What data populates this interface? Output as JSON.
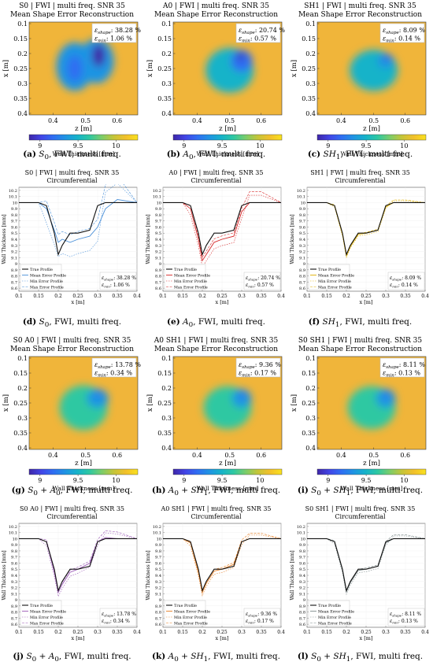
{
  "heatmaps": [
    {
      "id": "a",
      "title1": "S0 | FWI | multi freq. SNR 35",
      "title2": "Mean Shape Error Reconstruction",
      "eshape": "38.28 %",
      "emin": "1.06 %",
      "caption_tag": "(a)",
      "caption_mode": "S",
      "caption_sub": "0",
      "caption_rest": ", FWI, multi freq.",
      "shape": "s0"
    },
    {
      "id": "b",
      "title1": "A0 | FWI | multi freq. SNR 35",
      "title2": "Mean Shape Error Reconstruction",
      "eshape": "20.74 %",
      "emin": "0.57 %",
      "caption_tag": "(b)",
      "caption_mode": "A",
      "caption_sub": "0",
      "caption_rest": ", FWI, multi freq.",
      "shape": "a0"
    },
    {
      "id": "c",
      "title1": "SH1 | FWI | multi freq. SNR 35",
      "title2": "Mean Shape Error Reconstruction",
      "eshape": "8.09 %",
      "emin": "0.14 %",
      "caption_tag": "(c)",
      "caption_mode": "SH",
      "caption_sub": "1",
      "caption_rest": ", FWI, multi freq.",
      "shape": "sh1"
    },
    {
      "id": "g",
      "title1": "S0 A0 | FWI | multi freq. SNR 35",
      "title2": "Mean Shape Error Reconstruction",
      "eshape": "13.78 %",
      "emin": "0.34 %",
      "caption_tag": "(g)",
      "caption_mode": "S",
      "caption_sub": "0",
      "caption_mode2": "A",
      "caption_sub2": "0",
      "caption_rest": ", FWI, multi freq.",
      "shape": "sa"
    },
    {
      "id": "h",
      "title1": "A0 SH1 | FWI | multi freq. SNR 35",
      "title2": "Mean Shape Error Reconstruction",
      "eshape": "9.36 %",
      "emin": "0.17 %",
      "caption_tag": "(h)",
      "caption_mode": "A",
      "caption_sub": "0",
      "caption_mode2": "SH",
      "caption_sub2": "1",
      "caption_rest": ", FWI, multi freq.",
      "shape": "ash"
    },
    {
      "id": "i",
      "title1": "S0 SH1 | FWI | multi freq. SNR 35",
      "title2": "Mean Shape Error Reconstruction",
      "eshape": "8.11 %",
      "emin": "0.13 %",
      "caption_tag": "(i)",
      "caption_mode": "S",
      "caption_sub": "0",
      "caption_mode2": "SH",
      "caption_sub2": "1",
      "caption_rest": ", FWI, multi freq.",
      "shape": "ssh"
    }
  ],
  "heatmap_axes": {
    "xlabel": "z [m]",
    "ylabel": "x [m]",
    "xticks": [
      "0.4",
      "0.5",
      "0.6"
    ],
    "yticks": [
      "0.1",
      "0.15",
      "0.2",
      "0.25",
      "0.3",
      "0.35",
      "0.4"
    ],
    "cbar_ticks": [
      "9",
      "9.5",
      "10"
    ],
    "cbar_label": "Wall Thickness [mm]",
    "eshape_label": "ε",
    "eshape_sub": "shape",
    "emin_sub": "min"
  },
  "profiles": [
    {
      "id": "d",
      "title1": "S0 | FWI | multi freq. SNR 35",
      "title2": "Circumferential",
      "eshape": "38.28 %",
      "emin": "1.06 %",
      "caption_tag": "(d)",
      "caption_mode": "S",
      "caption_sub": "0",
      "caption_rest": ", FWI, multi freq.",
      "color": "#4a90d9",
      "variant": "s0"
    },
    {
      "id": "e",
      "title1": "A0 | FWI | multi freq. SNR 35",
      "title2": "Circumferential",
      "eshape": "20.74 %",
      "emin": "0.57 %",
      "caption_tag": "(e)",
      "caption_mode": "A",
      "caption_sub": "0",
      "caption_rest": ", FWI, multi freq.",
      "color": "#d62728",
      "variant": "a0"
    },
    {
      "id": "f",
      "title1": "SH1 | FWI | multi freq. SNR 35",
      "title2": "Circumferential",
      "eshape": "8.09 %",
      "emin": "0.14 %",
      "caption_tag": "(f)",
      "caption_mode": "SH",
      "caption_sub": "1",
      "caption_rest": ", FWI, multi freq.",
      "color": "#e0b000",
      "variant": "sh1"
    },
    {
      "id": "j",
      "title1": "S0 A0 | FWI | multi freq. SNR 35",
      "title2": "Circumferential",
      "eshape": "13.78 %",
      "emin": "0.34 %",
      "caption_tag": "(j)",
      "caption_mode": "S",
      "caption_sub": "0",
      "caption_mode2": "A",
      "caption_sub2": "0",
      "caption_rest": ", FWI, multi freq.",
      "color": "#9b59b6",
      "variant": "sa"
    },
    {
      "id": "k",
      "title1": "A0 SH1 | FWI | multi freq. SNR 35",
      "title2": "Circumferential",
      "eshape": "9.36 %",
      "emin": "0.17 %",
      "caption_tag": "(k)",
      "caption_mode": "A",
      "caption_sub": "0",
      "caption_mode2": "SH",
      "caption_sub2": "1",
      "caption_rest": ", FWI, multi freq.",
      "color": "#e67e22",
      "variant": "ash"
    },
    {
      "id": "l",
      "title1": "S0 SH1 | FWI | multi freq. SNR 35",
      "title2": "Circumferential",
      "eshape": "8.11 %",
      "emin": "0.13 %",
      "caption_tag": "(l)",
      "caption_mode": "S",
      "caption_sub": "0",
      "caption_mode2": "SH",
      "caption_sub2": "1",
      "caption_rest": ", FWI, multi freq.",
      "color": "#7f8c8d",
      "variant": "ssh"
    }
  ],
  "profile_axes": {
    "xlabel": "x [m]",
    "ylabel": "Wall Thickness [mm]",
    "xticks": [
      "0.1",
      "0.15",
      "0.2",
      "0.25",
      "0.3",
      "0.35",
      "0.4"
    ],
    "yticks": [
      "8.6",
      "8.7",
      "8.8",
      "8.9",
      "9",
      "9.1",
      "9.2",
      "9.3",
      "9.4",
      "9.5",
      "9.6",
      "9.7",
      "9.8",
      "9.9",
      "10",
      "10.1",
      "10.2"
    ],
    "legend": [
      "True Profile",
      "Mean Error Profile",
      "Min Error Profile",
      "Max Error Profile"
    ]
  },
  "chart_data": [
    {
      "type": "line",
      "title": "S0 | FWI | multi freq. SNR 35 Circumferential",
      "xlabel": "x [m]",
      "ylabel": "Wall Thickness [mm]",
      "xlim": [
        0.1,
        0.4
      ],
      "ylim": [
        8.55,
        10.25
      ],
      "x": [
        0.1,
        0.15,
        0.17,
        0.19,
        0.2,
        0.21,
        0.23,
        0.25,
        0.28,
        0.3,
        0.32,
        0.35,
        0.4
      ],
      "series": [
        {
          "name": "True Profile",
          "values": [
            10,
            10,
            9.95,
            9.5,
            9.15,
            9.3,
            9.5,
            9.5,
            9.55,
            9.95,
            10,
            10,
            10
          ]
        },
        {
          "name": "Mean Error Profile",
          "values": [
            10,
            10,
            9.9,
            9.55,
            9.35,
            9.4,
            9.35,
            9.4,
            9.45,
            9.6,
            9.9,
            10.05,
            10
          ]
        }
      ]
    },
    {
      "type": "line",
      "title": "A0 | FWI | multi freq. SNR 35 Circumferential",
      "xlabel": "x [m]",
      "ylabel": "Wall Thickness [mm]",
      "xlim": [
        0.1,
        0.4
      ],
      "ylim": [
        8.55,
        10.25
      ],
      "x": [
        0.1,
        0.15,
        0.17,
        0.19,
        0.2,
        0.21,
        0.23,
        0.25,
        0.28,
        0.3,
        0.32,
        0.35,
        0.4
      ],
      "series": [
        {
          "name": "True Profile",
          "values": [
            10,
            10,
            9.95,
            9.5,
            9.15,
            9.3,
            9.5,
            9.5,
            9.55,
            9.95,
            10,
            10,
            10
          ]
        },
        {
          "name": "Mean Error Profile",
          "values": [
            10,
            10,
            9.9,
            9.4,
            9.05,
            9.15,
            9.35,
            9.4,
            9.45,
            9.85,
            10,
            10,
            10
          ]
        }
      ]
    },
    {
      "type": "line",
      "title": "SH1 | FWI | multi freq. SNR 35 Circumferential",
      "xlabel": "x [m]",
      "ylabel": "Wall Thickness [mm]",
      "xlim": [
        0.1,
        0.4
      ],
      "ylim": [
        8.55,
        10.25
      ],
      "x": [
        0.1,
        0.15,
        0.17,
        0.19,
        0.2,
        0.21,
        0.23,
        0.25,
        0.28,
        0.3,
        0.32,
        0.35,
        0.4
      ],
      "series": [
        {
          "name": "True Profile",
          "values": [
            10,
            10,
            9.95,
            9.5,
            9.15,
            9.3,
            9.5,
            9.5,
            9.55,
            9.95,
            10,
            10,
            10
          ]
        },
        {
          "name": "Mean Error Profile",
          "values": [
            10,
            10,
            9.95,
            9.48,
            9.13,
            9.28,
            9.48,
            9.5,
            9.55,
            9.93,
            10,
            10,
            10
          ]
        }
      ]
    },
    {
      "type": "line",
      "title": "S0 A0 | FWI | multi freq. SNR 35 Circumferential",
      "xlabel": "x [m]",
      "ylabel": "Wall Thickness [mm]",
      "xlim": [
        0.1,
        0.4
      ],
      "ylim": [
        8.55,
        10.25
      ],
      "x": [
        0.1,
        0.15,
        0.17,
        0.19,
        0.2,
        0.21,
        0.23,
        0.25,
        0.28,
        0.3,
        0.32,
        0.35,
        0.4
      ],
      "series": [
        {
          "name": "True Profile",
          "values": [
            10,
            10,
            9.95,
            9.5,
            9.15,
            9.3,
            9.5,
            9.5,
            9.55,
            9.95,
            10,
            10,
            10
          ]
        },
        {
          "name": "Mean Error Profile",
          "values": [
            10,
            10,
            9.95,
            9.45,
            9.12,
            9.25,
            9.45,
            9.5,
            9.6,
            9.95,
            10.02,
            10,
            10
          ]
        }
      ]
    },
    {
      "type": "line",
      "title": "A0 SH1 | FWI | multi freq. SNR 35 Circumferential",
      "xlabel": "x [m]",
      "ylabel": "Wall Thickness [mm]",
      "xlim": [
        0.1,
        0.4
      ],
      "ylim": [
        8.55,
        10.25
      ],
      "x": [
        0.1,
        0.15,
        0.17,
        0.19,
        0.2,
        0.21,
        0.23,
        0.25,
        0.28,
        0.3,
        0.32,
        0.35,
        0.4
      ],
      "series": [
        {
          "name": "True Profile",
          "values": [
            10,
            10,
            9.95,
            9.5,
            9.15,
            9.3,
            9.5,
            9.5,
            9.55,
            9.95,
            10,
            10,
            10
          ]
        },
        {
          "name": "Mean Error Profile",
          "values": [
            10,
            10,
            9.93,
            9.45,
            9.12,
            9.27,
            9.47,
            9.5,
            9.58,
            9.95,
            10,
            10,
            10
          ]
        }
      ]
    },
    {
      "type": "line",
      "title": "S0 SH1 | FWI | multi freq. SNR 35 Circumferential",
      "xlabel": "x [m]",
      "ylabel": "Wall Thickness [mm]",
      "xlim": [
        0.1,
        0.4
      ],
      "ylim": [
        8.55,
        10.25
      ],
      "x": [
        0.1,
        0.15,
        0.17,
        0.19,
        0.2,
        0.21,
        0.23,
        0.25,
        0.28,
        0.3,
        0.32,
        0.35,
        0.4
      ],
      "series": [
        {
          "name": "True Profile",
          "values": [
            10,
            10,
            9.95,
            9.5,
            9.15,
            9.3,
            9.5,
            9.5,
            9.55,
            9.95,
            10,
            10,
            10
          ]
        },
        {
          "name": "Mean Error Profile",
          "values": [
            10,
            10,
            9.95,
            9.48,
            9.13,
            9.28,
            9.48,
            9.5,
            9.55,
            9.93,
            10,
            10,
            10
          ]
        }
      ]
    }
  ]
}
